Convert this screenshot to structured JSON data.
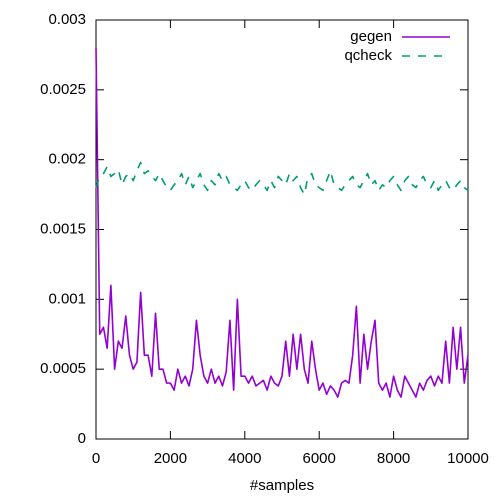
{
  "chart_data": {
    "type": "line",
    "x_label": "#samples",
    "x": [
      0,
      100,
      200,
      300,
      400,
      500,
      600,
      700,
      800,
      900,
      1000,
      1100,
      1200,
      1300,
      1400,
      1500,
      1600,
      1700,
      1800,
      1900,
      2000,
      2100,
      2200,
      2300,
      2400,
      2500,
      2600,
      2700,
      2800,
      2900,
      3000,
      3100,
      3200,
      3300,
      3400,
      3500,
      3600,
      3700,
      3800,
      3900,
      4000,
      4100,
      4200,
      4300,
      4400,
      4500,
      4600,
      4700,
      4800,
      4900,
      5000,
      5100,
      5200,
      5300,
      5400,
      5500,
      5600,
      5700,
      5800,
      5900,
      6000,
      6100,
      6200,
      6300,
      6400,
      6500,
      6600,
      6700,
      6800,
      6900,
      7000,
      7100,
      7200,
      7300,
      7400,
      7500,
      7600,
      7700,
      7800,
      7900,
      8000,
      8100,
      8200,
      8300,
      8400,
      8500,
      8600,
      8700,
      8800,
      8900,
      9000,
      9100,
      9200,
      9300,
      9400,
      9500,
      9600,
      9700,
      9800,
      9900,
      10000
    ],
    "series": [
      {
        "name": "gegen",
        "color": "#9400d3",
        "dash": false,
        "values": [
          0.0028,
          0.00075,
          0.0008,
          0.00065,
          0.0011,
          0.0005,
          0.0007,
          0.00065,
          0.00088,
          0.0006,
          0.0005,
          0.00055,
          0.00105,
          0.0006,
          0.0006,
          0.00045,
          0.0009,
          0.0005,
          0.0005,
          0.0004,
          0.0004,
          0.00035,
          0.0005,
          0.0004,
          0.00045,
          0.00038,
          0.0005,
          0.00085,
          0.0006,
          0.00045,
          0.0004,
          0.0005,
          0.0004,
          0.00045,
          0.00038,
          0.00048,
          0.00085,
          0.00035,
          0.001,
          0.00045,
          0.00045,
          0.0004,
          0.00045,
          0.00038,
          0.0004,
          0.00042,
          0.00035,
          0.00045,
          0.0004,
          0.00038,
          0.00045,
          0.0007,
          0.00045,
          0.00075,
          0.0005,
          0.00075,
          0.0005,
          0.0004,
          0.0007,
          0.0005,
          0.00035,
          0.0004,
          0.00032,
          0.00038,
          0.00035,
          0.0003,
          0.0004,
          0.00042,
          0.0004,
          0.0006,
          0.00095,
          0.0004,
          0.00075,
          0.0005,
          0.0007,
          0.00085,
          0.0004,
          0.00035,
          0.0004,
          0.0003,
          0.00045,
          0.00035,
          0.0003,
          0.00045,
          0.0004,
          0.00035,
          0.0003,
          0.0004,
          0.00035,
          0.00042,
          0.00045,
          0.00038,
          0.00045,
          0.0004,
          0.0007,
          0.0004,
          0.0008,
          0.0005,
          0.0008,
          0.0004,
          0.0006
        ]
      },
      {
        "name": "qcheck",
        "color": "#009e73",
        "dash": true,
        "values": [
          0.0018,
          0.00188,
          0.0019,
          0.00195,
          0.00188,
          0.0019,
          0.00193,
          0.00182,
          0.00188,
          0.0019,
          0.00185,
          0.00192,
          0.00198,
          0.0019,
          0.00192,
          0.00188,
          0.00185,
          0.0019,
          0.00185,
          0.0018,
          0.00178,
          0.00182,
          0.00185,
          0.0019,
          0.00182,
          0.00188,
          0.0018,
          0.00185,
          0.0019,
          0.00182,
          0.00178,
          0.00185,
          0.00182,
          0.0019,
          0.00185,
          0.00188,
          0.00182,
          0.0018,
          0.00178,
          0.00182,
          0.00185,
          0.0018,
          0.00178,
          0.00182,
          0.00185,
          0.00182,
          0.00178,
          0.00185,
          0.0018,
          0.00188,
          0.00185,
          0.00182,
          0.0019,
          0.00185,
          0.00188,
          0.0018,
          0.00175,
          0.00188,
          0.0019,
          0.00182,
          0.0018,
          0.00178,
          0.00185,
          0.00192,
          0.00182,
          0.0018,
          0.00178,
          0.00182,
          0.00185,
          0.00188,
          0.00182,
          0.0018,
          0.00185,
          0.0019,
          0.00182,
          0.00185,
          0.00178,
          0.00182,
          0.0018,
          0.00185,
          0.00188,
          0.00182,
          0.00178,
          0.00185,
          0.00188,
          0.00182,
          0.0018,
          0.00185,
          0.00188,
          0.00182,
          0.0018,
          0.00185,
          0.00178,
          0.00182,
          0.00185,
          0.0018,
          0.00178,
          0.00182,
          0.00185,
          0.0018,
          0.00178
        ]
      }
    ],
    "xlim": [
      0,
      10000
    ],
    "xticks": [
      0,
      2000,
      4000,
      6000,
      8000,
      10000
    ],
    "ylim": [
      0,
      0.003
    ],
    "yticks": [
      0,
      0.0005,
      0.001,
      0.0015,
      0.002,
      0.0025,
      0.003
    ],
    "legend": "top-right"
  }
}
